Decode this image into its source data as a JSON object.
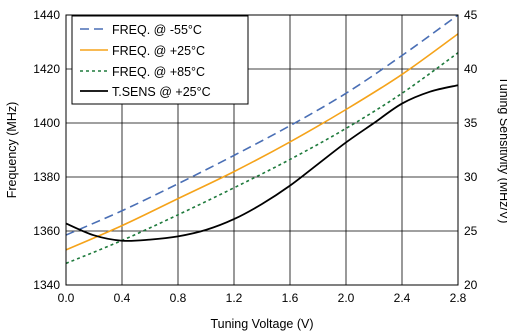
{
  "chart_data": {
    "type": "line",
    "title": "",
    "xlabel": "Tuning Voltage (V)",
    "ylabel": "Frequency (MHz)",
    "y2label": "Tuning Sensitivity (MHz/V)",
    "xlim": [
      0.0,
      2.8
    ],
    "ylim": [
      1340,
      1440
    ],
    "y2lim": [
      20,
      45
    ],
    "xticks": [
      "0.0",
      "0.4",
      "0.8",
      "1.2",
      "1.6",
      "2.0",
      "2.4",
      "2.8"
    ],
    "xtick_values": [
      0.0,
      0.4,
      0.8,
      1.2,
      1.6,
      2.0,
      2.4,
      2.8
    ],
    "yticks": [
      "1340",
      "1360",
      "1380",
      "1400",
      "1420",
      "1440"
    ],
    "ytick_values": [
      1340,
      1360,
      1380,
      1400,
      1420,
      1440
    ],
    "y2ticks": [
      "20",
      "25",
      "30",
      "35",
      "40",
      "45"
    ],
    "y2tick_values": [
      20,
      25,
      30,
      35,
      40,
      45
    ],
    "grid": true,
    "legend_position": "top-left",
    "series": [
      {
        "name": "FREQ. @ -55°C",
        "axis": "left",
        "color": "#4a6fb5",
        "dash": "dashed",
        "x": [
          0.0,
          0.4,
          0.8,
          1.2,
          1.6,
          2.0,
          2.4,
          2.8
        ],
        "y": [
          1358.5,
          1367.5,
          1377.5,
          1388,
          1399,
          1411,
          1425,
          1440
        ]
      },
      {
        "name": "FREQ. @ +25°C",
        "axis": "left",
        "color": "#f5a31a",
        "dash": "solid",
        "x": [
          0.0,
          0.4,
          0.8,
          1.2,
          1.6,
          2.0,
          2.4,
          2.8
        ],
        "y": [
          1353,
          1362,
          1372,
          1382,
          1393,
          1405,
          1418,
          1433
        ]
      },
      {
        "name": "FREQ. @ +85°C",
        "axis": "left",
        "color": "#1e7a3c",
        "dash": "dotted",
        "x": [
          0.0,
          0.4,
          0.8,
          1.2,
          1.6,
          2.0,
          2.4,
          2.8
        ],
        "y": [
          1348,
          1356.5,
          1366,
          1376,
          1386.5,
          1398,
          1411,
          1426
        ]
      },
      {
        "name": "T.SENS @ +25°C",
        "axis": "right",
        "color": "#000000",
        "dash": "solid",
        "x": [
          0.0,
          0.2,
          0.4,
          0.6,
          0.8,
          1.0,
          1.2,
          1.4,
          1.6,
          1.8,
          2.0,
          2.2,
          2.4,
          2.6,
          2.8
        ],
        "y": [
          25.7,
          24.6,
          24.1,
          24.2,
          24.5,
          25.1,
          26.1,
          27.5,
          29.2,
          31.2,
          33.2,
          35.0,
          36.8,
          37.9,
          38.5
        ]
      }
    ]
  }
}
